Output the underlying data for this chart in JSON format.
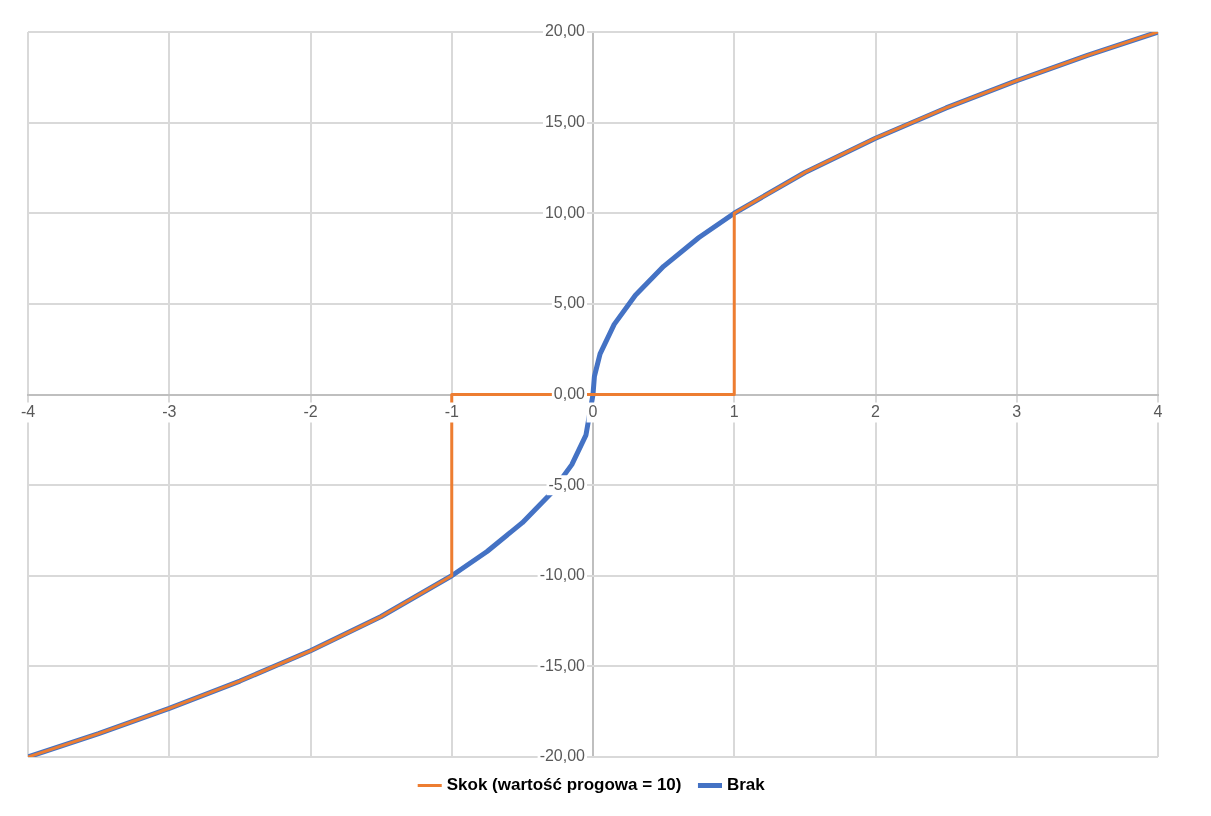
{
  "chart_data": {
    "type": "line",
    "xlim": [
      -4,
      4
    ],
    "xticks": [
      -4,
      -3,
      -2,
      -1,
      0,
      1,
      2,
      3,
      4
    ],
    "ylim": [
      -20,
      20
    ],
    "yticks": [
      {
        "value": -20,
        "label": "-20,00"
      },
      {
        "value": -15,
        "label": "-15,00"
      },
      {
        "value": -10,
        "label": "-10,00"
      },
      {
        "value": -5,
        "label": "-5,00"
      },
      {
        "value": 0,
        "label": "0,00"
      },
      {
        "value": 5,
        "label": "5,00"
      },
      {
        "value": 10,
        "label": "10,00"
      },
      {
        "value": 15,
        "label": "15,00"
      },
      {
        "value": 20,
        "label": "20,00"
      }
    ],
    "grid": true,
    "legend": "bottom",
    "marker": "none",
    "series": [
      {
        "name": "Brak",
        "color": "#4472c4",
        "x": [
          -4,
          -3.5,
          -3,
          -2.5,
          -2,
          -1.5,
          -1,
          -0.75,
          -0.5,
          -0.3,
          -0.15,
          -0.05,
          0,
          0.01,
          0.05,
          0.15,
          0.3,
          0.5,
          0.75,
          1,
          1.5,
          2,
          2.5,
          3,
          3.5,
          4
        ],
        "values": [
          -20,
          -18.71,
          -17.32,
          -15.81,
          -14.14,
          -12.25,
          -10,
          -8.66,
          -7.07,
          -5.48,
          -3.87,
          -2.24,
          0,
          1,
          2.24,
          3.87,
          5.48,
          7.07,
          8.66,
          10,
          12.25,
          14.14,
          15.81,
          17.32,
          18.71,
          20
        ]
      },
      {
        "name": "Skok (wartość progowa = 10)",
        "color": "#ed7d31",
        "x": [
          -4,
          -3.5,
          -3,
          -2.5,
          -2,
          -1.5,
          -1,
          -1,
          1,
          1,
          1.5,
          2,
          2.5,
          3,
          3.5,
          4
        ],
        "values": [
          -20,
          -18.71,
          -17.32,
          -15.81,
          -14.14,
          -12.25,
          -10,
          0,
          0,
          10,
          12.25,
          14.14,
          15.81,
          17.32,
          18.71,
          20
        ]
      }
    ]
  }
}
